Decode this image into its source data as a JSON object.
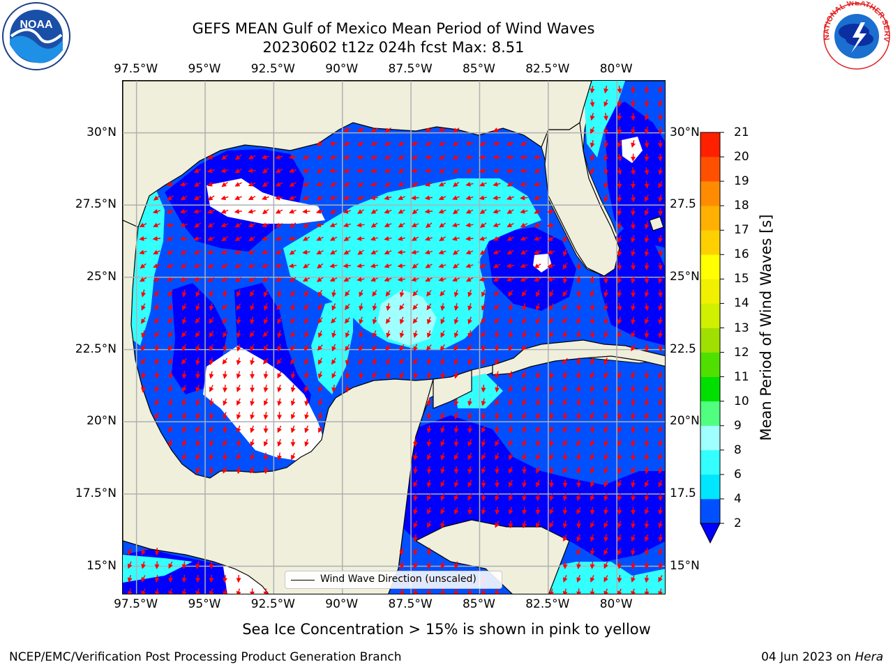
{
  "title": {
    "line1": "GEFS MEAN Gulf of Mexico Mean Period of Wind Waves",
    "line2": "20230602 t12z 024h fcst   Max: 8.51"
  },
  "logos": {
    "left": {
      "icon": "noaa-logo-icon",
      "text": "NOAA"
    },
    "right": {
      "icon": "nws-logo-icon",
      "text": "NATIONAL WEATHER SERVICE"
    }
  },
  "axes": {
    "lon_labels": [
      "97.5°W",
      "95°W",
      "92.5°W",
      "90°W",
      "87.5°W",
      "85°W",
      "82.5°W",
      "80°W"
    ],
    "lon_values": [
      -97.5,
      -95,
      -92.5,
      -90,
      -87.5,
      -85,
      -82.5,
      -80
    ],
    "lat_labels": [
      "30°N",
      "27.5°N",
      "25°N",
      "22.5°N",
      "20°N",
      "17.5°N",
      "15°N"
    ],
    "lat_labels_right": [
      "30°N",
      "27.5",
      "25°N",
      "22.5",
      "20°N",
      "17.5",
      "15°N"
    ],
    "lat_values": [
      30,
      27.5,
      25,
      22.5,
      20,
      17.5,
      15
    ],
    "lon_range": [
      -98,
      -78.2
    ],
    "lat_range": [
      14,
      31.8
    ],
    "grid": true
  },
  "map": {
    "land_color": "#efefdc",
    "no_data_color": "#ffffff",
    "arrow_color": "#ff0000",
    "dominant_wind_direction": "south-westward (from north-east)"
  },
  "legend": {
    "entry": "Wind Wave Direction (unscaled)"
  },
  "colorbar": {
    "label": "Mean Period of Wind Waves [s]",
    "ticks": [
      "2",
      "4",
      "6",
      "8",
      "9",
      "10",
      "11",
      "12",
      "13",
      "14",
      "15",
      "16",
      "17",
      "18",
      "19",
      "20",
      "21"
    ],
    "colors": [
      "#0050ff",
      "#00e6ff",
      "#33ffff",
      "#a0ffff",
      "#50ff80",
      "#00e000",
      "#50e000",
      "#a0e000",
      "#d0f000",
      "#f0f000",
      "#ffff00",
      "#ffd000",
      "#ffb000",
      "#ff8c00",
      "#ff5000",
      "#ff2000"
    ],
    "extend": "min",
    "extend_color": "#0000ff"
  },
  "chart_data": {
    "type": "heatmap",
    "title": "GEFS MEAN Gulf of Mexico Mean Period of Wind Waves",
    "subtitle": "20230602 t12z 024h fcst   Max: 8.51",
    "variable": "Mean Period of Wind Waves [s]",
    "max": 8.51,
    "levels": [
      2,
      4,
      6,
      8,
      9,
      10,
      11,
      12,
      13,
      14,
      15,
      16,
      17,
      18,
      19,
      20,
      21
    ],
    "xlim": [
      -98,
      -78.2
    ],
    "ylim": [
      14,
      31.8
    ]
  },
  "note": "Sea Ice Concentration > 15% is shown in pink to yellow",
  "footer": {
    "left": "NCEP/EMC/Verification Post Processing Product Generation Branch",
    "right_prefix": "04 Jun 2023 on ",
    "right_host": "Hera"
  }
}
